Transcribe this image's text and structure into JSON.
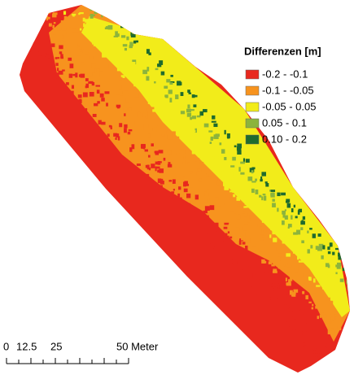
{
  "legend": {
    "title": "Differenzen [m]",
    "items": [
      {
        "label": "-0.2 - -0.1",
        "color": "#e8281e"
      },
      {
        "label": "-0.1 - -0.05",
        "color": "#f7931e"
      },
      {
        "label": "-0.05 - 0.05",
        "color": "#f2ec1a"
      },
      {
        "label": "0.05 - 0.1",
        "color": "#8cb43c"
      },
      {
        "label": "0.10 - 0.2",
        "color": "#1f6b2e"
      }
    ]
  },
  "scale_bar": {
    "labels": [
      "0",
      "12.5",
      "25",
      "50 Meter"
    ]
  }
}
